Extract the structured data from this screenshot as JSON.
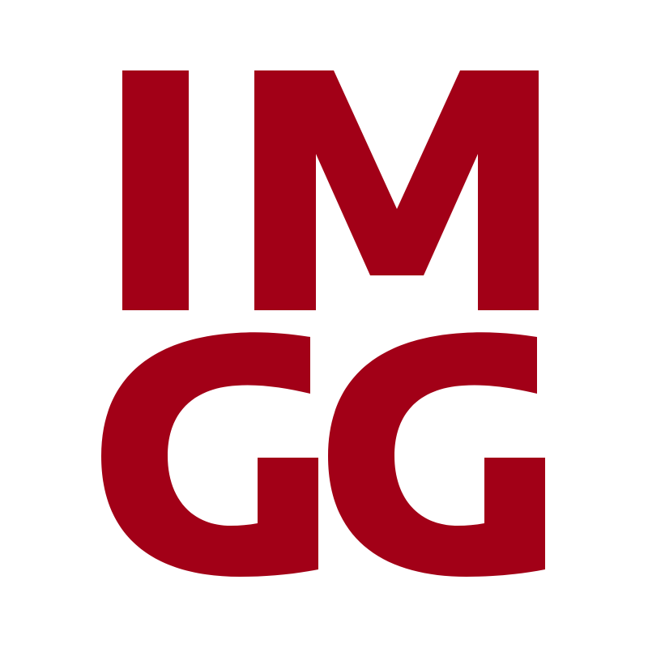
{
  "logo": {
    "line1": "IM",
    "line2": "GG",
    "color": "#A20017",
    "background": "#FFFFFF",
    "icon": "imgg-logo"
  }
}
